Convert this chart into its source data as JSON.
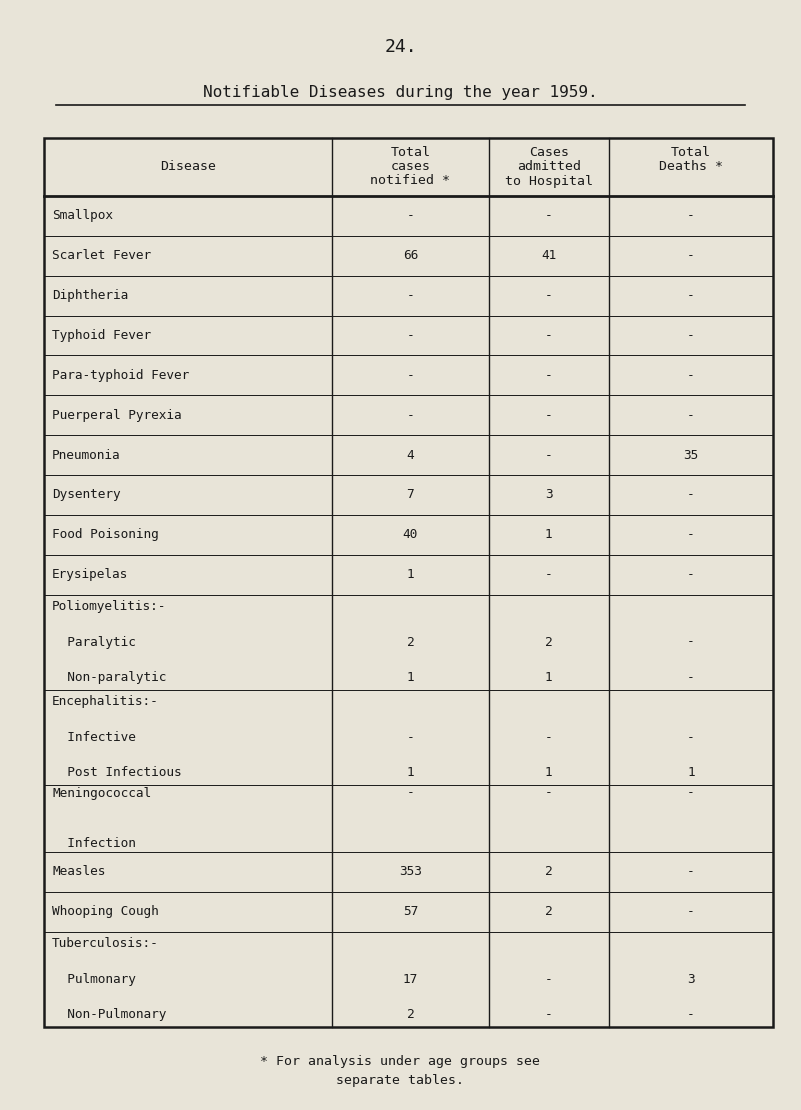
{
  "page_number": "24.",
  "title": "Notifiable Diseases during the year 1959.",
  "col_headers_line1": [
    "Disease",
    "Total",
    "Cases",
    "Total"
  ],
  "col_headers_line2": [
    "",
    "cases",
    "admitted",
    "Deaths *"
  ],
  "col_headers_line3": [
    "",
    "notified *",
    "to Hospital",
    ""
  ],
  "rows": [
    {
      "disease_lines": [
        "Smallpox"
      ],
      "notified_lines": [
        "-"
      ],
      "admitted_lines": [
        "-"
      ],
      "deaths_lines": [
        "-"
      ],
      "n_lines": 1
    },
    {
      "disease_lines": [
        "Scarlet Fever"
      ],
      "notified_lines": [
        "66"
      ],
      "admitted_lines": [
        "41"
      ],
      "deaths_lines": [
        "-"
      ],
      "n_lines": 1
    },
    {
      "disease_lines": [
        "Diphtheria"
      ],
      "notified_lines": [
        "-"
      ],
      "admitted_lines": [
        "-"
      ],
      "deaths_lines": [
        "-"
      ],
      "n_lines": 1
    },
    {
      "disease_lines": [
        "Typhoid Fever"
      ],
      "notified_lines": [
        "-"
      ],
      "admitted_lines": [
        "-"
      ],
      "deaths_lines": [
        "-"
      ],
      "n_lines": 1
    },
    {
      "disease_lines": [
        "Para-typhoid Fever"
      ],
      "notified_lines": [
        "-"
      ],
      "admitted_lines": [
        "-"
      ],
      "deaths_lines": [
        "-"
      ],
      "n_lines": 1
    },
    {
      "disease_lines": [
        "Puerperal Pyrexia"
      ],
      "notified_lines": [
        "-"
      ],
      "admitted_lines": [
        "-"
      ],
      "deaths_lines": [
        "-"
      ],
      "n_lines": 1
    },
    {
      "disease_lines": [
        "Pneumonia"
      ],
      "notified_lines": [
        "4"
      ],
      "admitted_lines": [
        "-"
      ],
      "deaths_lines": [
        "35"
      ],
      "n_lines": 1
    },
    {
      "disease_lines": [
        "Dysentery"
      ],
      "notified_lines": [
        "7"
      ],
      "admitted_lines": [
        "3"
      ],
      "deaths_lines": [
        "-"
      ],
      "n_lines": 1
    },
    {
      "disease_lines": [
        "Food Poisoning"
      ],
      "notified_lines": [
        "40"
      ],
      "admitted_lines": [
        "1"
      ],
      "deaths_lines": [
        "-"
      ],
      "n_lines": 1
    },
    {
      "disease_lines": [
        "Erysipelas"
      ],
      "notified_lines": [
        "1"
      ],
      "admitted_lines": [
        "-"
      ],
      "deaths_lines": [
        "-"
      ],
      "n_lines": 1
    },
    {
      "disease_lines": [
        "Poliomyelitis:-",
        "  Paralytic",
        "  Non-paralytic"
      ],
      "notified_lines": [
        "",
        "2",
        "1"
      ],
      "admitted_lines": [
        "",
        "2",
        "1"
      ],
      "deaths_lines": [
        "",
        "-",
        "-"
      ],
      "n_lines": 3
    },
    {
      "disease_lines": [
        "Encephalitis:-",
        "  Infective",
        "  Post Infectious"
      ],
      "notified_lines": [
        "",
        "-",
        "1"
      ],
      "admitted_lines": [
        "",
        "-",
        "1"
      ],
      "deaths_lines": [
        "",
        "-",
        "1"
      ],
      "n_lines": 3
    },
    {
      "disease_lines": [
        "Meningococcal",
        "  Infection"
      ],
      "notified_lines": [
        "-",
        ""
      ],
      "admitted_lines": [
        "-",
        ""
      ],
      "deaths_lines": [
        "-",
        ""
      ],
      "n_lines": 2
    },
    {
      "disease_lines": [
        "Measles"
      ],
      "notified_lines": [
        "353"
      ],
      "admitted_lines": [
        "2"
      ],
      "deaths_lines": [
        "-"
      ],
      "n_lines": 1
    },
    {
      "disease_lines": [
        "Whooping Cough"
      ],
      "notified_lines": [
        "57"
      ],
      "admitted_lines": [
        "2"
      ],
      "deaths_lines": [
        "-"
      ],
      "n_lines": 1
    },
    {
      "disease_lines": [
        "Tuberculosis:-",
        "  Pulmonary",
        "  Non-Pulmonary"
      ],
      "notified_lines": [
        "",
        "17",
        "2"
      ],
      "admitted_lines": [
        "",
        "-",
        "-"
      ],
      "deaths_lines": [
        "",
        "3",
        "-"
      ],
      "n_lines": 3
    }
  ],
  "footnote": "* For analysis under age groups see\nseparate tables.",
  "bg_color": "#e8e4d8",
  "text_color": "#1a1a1a",
  "line_color": "#1a1a1a",
  "font_family": "DejaVu Sans Mono"
}
